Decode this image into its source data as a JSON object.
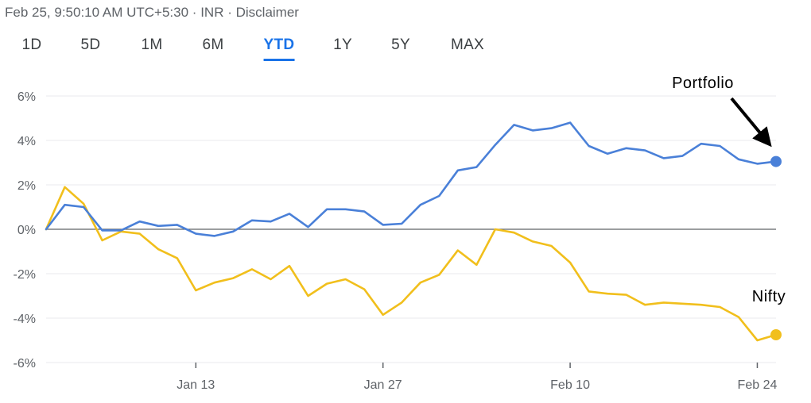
{
  "header": {
    "timestamp": "Feb 25, 9:50:10 AM UTC+5:30",
    "currency": "INR",
    "disclaimer": "Disclaimer",
    "separator": "·"
  },
  "range_tabs": [
    {
      "label": "1D",
      "active": false
    },
    {
      "label": "5D",
      "active": false
    },
    {
      "label": "1M",
      "active": false
    },
    {
      "label": "6M",
      "active": false
    },
    {
      "label": "YTD",
      "active": true
    },
    {
      "label": "1Y",
      "active": false
    },
    {
      "label": "5Y",
      "active": false
    },
    {
      "label": "MAX",
      "active": false
    }
  ],
  "colors": {
    "portfolio": "#4a80d8",
    "nifty": "#f1bf1c",
    "accent": "#1a73e8",
    "grid": "#e8eaed",
    "baseline": "#5f6368"
  },
  "chart_data": {
    "type": "line",
    "title": "",
    "xlabel": "",
    "ylabel": "",
    "x_unit": "trading day index",
    "ylim": [
      -6,
      6
    ],
    "xlim": [
      0,
      39
    ],
    "y_ticks": [
      "6%",
      "4%",
      "2%",
      "0%",
      "-2%",
      "-4%",
      "-6%"
    ],
    "y_tick_values": [
      6,
      4,
      2,
      0,
      -2,
      -4,
      -6
    ],
    "x_ticks": [
      {
        "label": "Jan 13",
        "x": 8
      },
      {
        "label": "Jan 27",
        "x": 18
      },
      {
        "label": "Feb 10",
        "x": 28
      },
      {
        "label": "Feb 24",
        "x": 38
      }
    ],
    "grid": true,
    "annotations": [
      "Portfolio",
      "Nifty"
    ],
    "series": [
      {
        "name": "Portfolio",
        "values": [
          0.0,
          1.1,
          1.0,
          -0.05,
          -0.05,
          0.35,
          0.15,
          0.2,
          -0.2,
          -0.3,
          -0.1,
          0.4,
          0.35,
          0.7,
          0.1,
          0.9,
          0.9,
          0.8,
          0.2,
          0.25,
          1.1,
          1.5,
          2.65,
          2.8,
          3.8,
          4.7,
          4.45,
          4.55,
          4.8,
          3.75,
          3.4,
          3.65,
          3.55,
          3.2,
          3.3,
          3.85,
          3.75,
          3.15,
          2.95,
          3.05
        ]
      },
      {
        "name": "Nifty",
        "values": [
          0.0,
          1.9,
          1.15,
          -0.5,
          -0.1,
          -0.2,
          -0.9,
          -1.3,
          -2.75,
          -2.4,
          -2.2,
          -1.8,
          -2.25,
          -1.65,
          -3.0,
          -2.45,
          -2.25,
          -2.7,
          -3.85,
          -3.3,
          -2.4,
          -2.05,
          -0.95,
          -1.6,
          0.0,
          -0.15,
          -0.55,
          -0.75,
          -1.5,
          -2.8,
          -2.9,
          -2.95,
          -3.4,
          -3.3,
          -3.35,
          -3.4,
          -3.5,
          -3.95,
          -5.0,
          -4.75
        ]
      }
    ]
  }
}
